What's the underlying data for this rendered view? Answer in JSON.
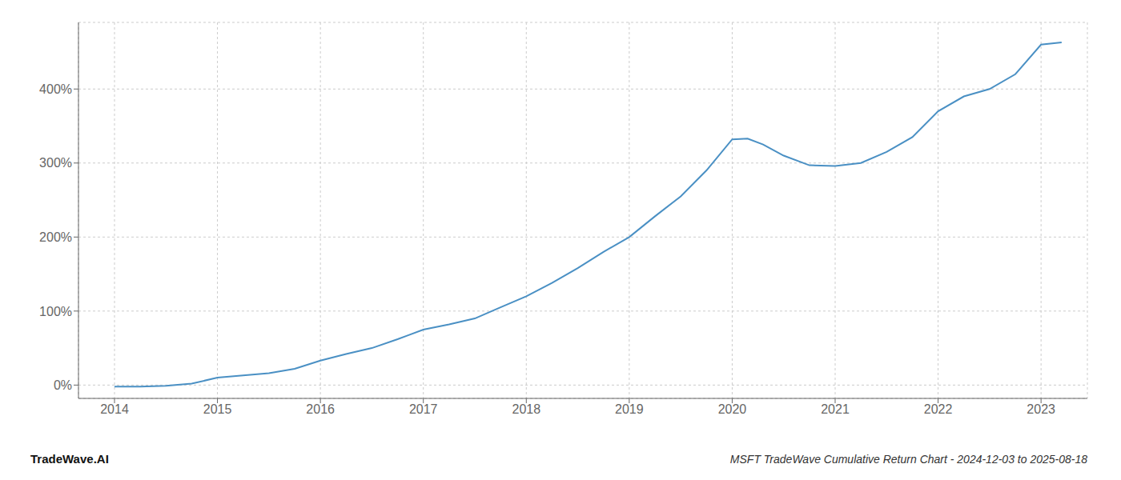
{
  "chart_data": {
    "type": "line",
    "title": "MSFT TradeWave Cumulative Return Chart - 2024-12-03 to 2025-08-18",
    "annotations": [
      "TradeWave.AI"
    ],
    "x": [
      2014.0,
      2014.25,
      2014.5,
      2014.75,
      2015.0,
      2015.25,
      2015.5,
      2015.75,
      2016.0,
      2016.25,
      2016.5,
      2016.75,
      2017.0,
      2017.25,
      2017.5,
      2017.75,
      2018.0,
      2018.25,
      2018.5,
      2018.75,
      2019.0,
      2019.25,
      2019.5,
      2019.75,
      2020.0,
      2020.15,
      2020.3,
      2020.5,
      2020.75,
      2021.0,
      2021.25,
      2021.5,
      2021.75,
      2022.0,
      2022.25,
      2022.5,
      2022.75,
      2023.0,
      2023.2
    ],
    "values": [
      -2,
      -2,
      -1,
      2,
      10,
      13,
      16,
      22,
      33,
      42,
      50,
      62,
      75,
      82,
      90,
      105,
      120,
      138,
      158,
      180,
      200,
      228,
      255,
      290,
      332,
      333,
      325,
      310,
      297,
      296,
      300,
      315,
      335,
      370,
      390,
      400,
      420,
      460,
      463
    ],
    "color": "#4a90c4",
    "xlim": [
      2013.65,
      2023.45
    ],
    "xticks": [
      2014,
      2015,
      2016,
      2017,
      2018,
      2019,
      2020,
      2021,
      2022,
      2023
    ],
    "ylim": [
      -18,
      490
    ],
    "yticks": [
      {
        "value": 0,
        "label": "0%"
      },
      {
        "value": 100,
        "label": "100%"
      },
      {
        "value": 200,
        "label": "200%"
      },
      {
        "value": 300,
        "label": "300%"
      },
      {
        "value": 400,
        "label": "400%"
      }
    ],
    "grid": true
  }
}
